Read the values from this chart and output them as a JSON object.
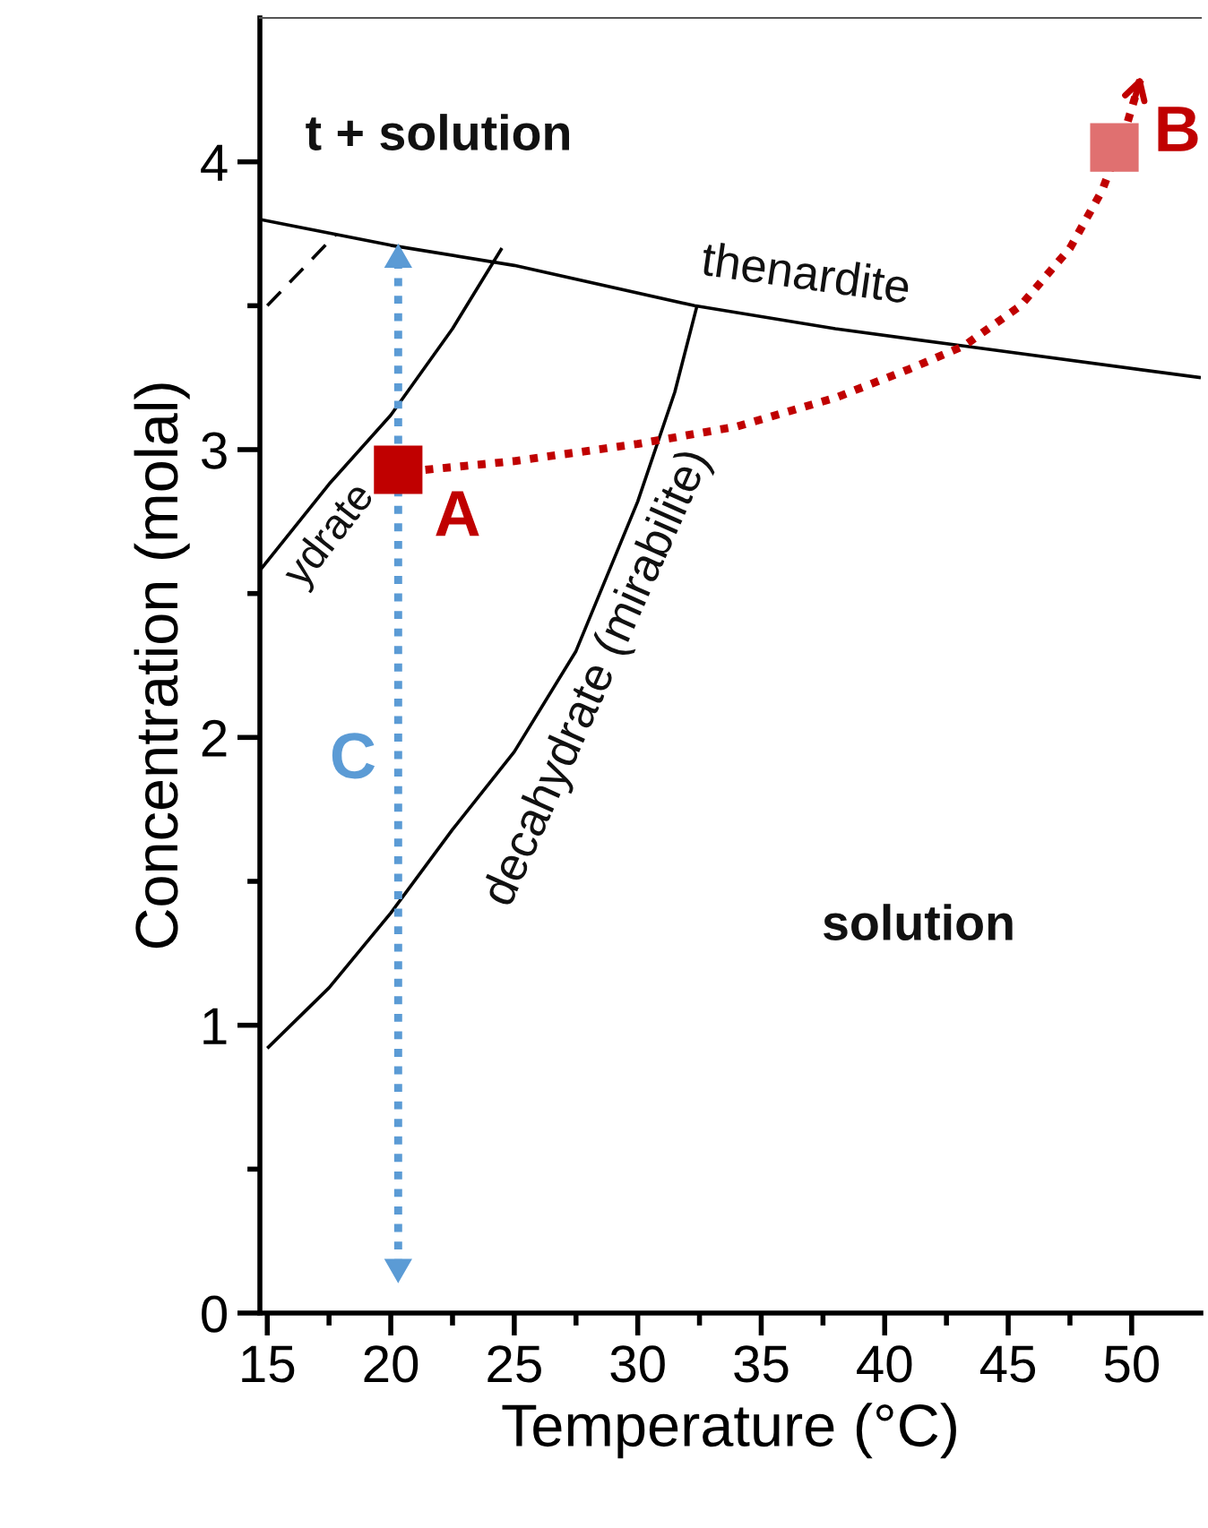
{
  "chart_data": {
    "type": "line",
    "xlabel": "Temperature (°C)",
    "ylabel": "Concentration (molal)",
    "xlim": [
      14.7,
      52.8
    ],
    "ylim": [
      0,
      4.5
    ],
    "xticks": [
      15,
      {
        "value": 17.5,
        "label": null
      },
      20,
      {
        "value": 22.5,
        "label": null
      },
      25,
      {
        "value": 27.5,
        "label": null
      },
      30,
      {
        "value": 32.5,
        "label": null
      },
      35,
      {
        "value": 37.5,
        "label": null
      },
      40,
      {
        "value": 42.5,
        "label": null
      },
      45,
      {
        "value": 47.5,
        "label": null
      },
      50
    ],
    "yticks": [
      0,
      {
        "value": 0.5,
        "label": null
      },
      1,
      {
        "value": 1.5,
        "label": null
      },
      2,
      {
        "value": 2.5,
        "label": null
      },
      3,
      {
        "value": 3.5,
        "label": null
      },
      4
    ],
    "grid": false,
    "legend": false,
    "series": [
      {
        "color": "#000000",
        "line_style": "solid",
        "x": [
          14.7,
          20,
          25,
          32.3,
          38,
          43.2,
          52.8
        ],
        "values": [
          3.8,
          3.71,
          3.64,
          3.5,
          3.42,
          3.36,
          3.25
        ]
      },
      {
        "color": "#000000",
        "line_style": "solid",
        "x": [
          14.7,
          17.5,
          20,
          22.5,
          24.5
        ],
        "values": [
          2.58,
          2.88,
          3.12,
          3.42,
          3.7
        ]
      },
      {
        "color": "#000000",
        "line_style": "dashed",
        "x": [
          15,
          17.8
        ],
        "values": [
          3.5,
          3.75
        ]
      },
      {
        "color": "#000000",
        "line_style": "solid",
        "x": [
          15,
          17.5,
          20,
          22.5,
          25,
          27.5,
          30,
          31.5,
          32.4
        ],
        "values": [
          0.92,
          1.13,
          1.39,
          1.68,
          1.95,
          2.3,
          2.82,
          3.2,
          3.5
        ]
      },
      {
        "color": "#c00000",
        "line_style": "dotted",
        "x": [
          21.4,
          25,
          30,
          34,
          38,
          41,
          43.2,
          45.5,
          47.5,
          48.8,
          49.7,
          50.4
        ],
        "values": [
          2.93,
          2.96,
          3.02,
          3.08,
          3.18,
          3.28,
          3.36,
          3.5,
          3.7,
          3.9,
          4.1,
          4.3
        ]
      },
      {
        "color": "#5b9bd5",
        "marker": "triangle",
        "line_style": "dotted",
        "x": [
          20.3,
          20.3
        ],
        "values": [
          0.16,
          3.66
        ]
      },
      {
        "type": "scatter",
        "marker": "square",
        "color": "#c00000",
        "x": [
          20.3
        ],
        "values": [
          2.93
        ]
      },
      {
        "type": "scatter",
        "marker": "square",
        "color": "#e07070",
        "x": [
          49.3
        ],
        "values": [
          4.05
        ]
      }
    ],
    "annotations": [
      "t + solution",
      "solution",
      "thenardite",
      "decahydrate (mirabilite)",
      "ydrate",
      "A",
      "B",
      "C"
    ]
  }
}
